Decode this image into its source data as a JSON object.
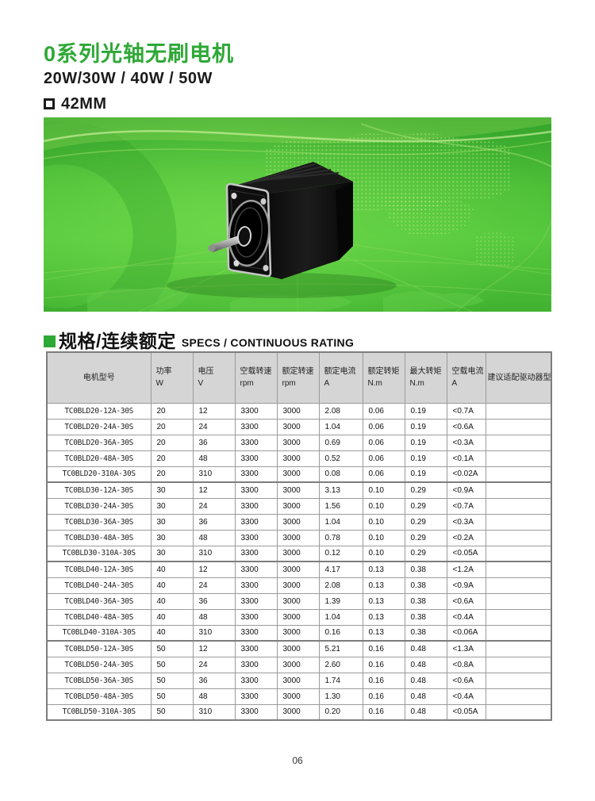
{
  "header": {
    "title": "0系列光轴无刷电机",
    "power_range": "20W/30W / 40W / 50W",
    "frame_size": "42MM"
  },
  "section": {
    "title_cn": "规格/连续额定",
    "title_en": "SPECS / CONTINUOUS RATING"
  },
  "banner": {
    "description": "green world-map banner with black brushless motor photo"
  },
  "table": {
    "columns": [
      {
        "label": "电机型号",
        "unit": ""
      },
      {
        "label": "功率",
        "unit": "W"
      },
      {
        "label": "电压",
        "unit": "V"
      },
      {
        "label": "空载转速",
        "unit": "rpm"
      },
      {
        "label": "额定转速",
        "unit": "rpm"
      },
      {
        "label": "额定电流",
        "unit": "A"
      },
      {
        "label": "额定转矩",
        "unit": "N.m"
      },
      {
        "label": "最大转矩",
        "unit": "N.m"
      },
      {
        "label": "空载电流",
        "unit": "A"
      },
      {
        "label": "建议适配驱动器型号",
        "unit": ""
      }
    ],
    "rows": [
      [
        "TC0BLD20-12A-30S",
        "20",
        "12",
        "3300",
        "3000",
        "2.08",
        "0.06",
        "0.19",
        "<0.7A",
        ""
      ],
      [
        "TC0BLD20-24A-30S",
        "20",
        "24",
        "3300",
        "3000",
        "1.04",
        "0.06",
        "0.19",
        "<0.6A",
        ""
      ],
      [
        "TC0BLD20-36A-30S",
        "20",
        "36",
        "3300",
        "3000",
        "0.69",
        "0.06",
        "0.19",
        "<0.3A",
        ""
      ],
      [
        "TC0BLD20-48A-30S",
        "20",
        "48",
        "3300",
        "3000",
        "0.52",
        "0.06",
        "0.19",
        "<0.1A",
        ""
      ],
      [
        "TC0BLD20-310A-30S",
        "20",
        "310",
        "3300",
        "3000",
        "0.08",
        "0.06",
        "0.19",
        "<0.02A",
        ""
      ],
      [
        "TC0BLD30-12A-30S",
        "30",
        "12",
        "3300",
        "3000",
        "3.13",
        "0.10",
        "0.29",
        "<0.9A",
        ""
      ],
      [
        "TC0BLD30-24A-30S",
        "30",
        "24",
        "3300",
        "3000",
        "1.56",
        "0.10",
        "0.29",
        "<0.7A",
        ""
      ],
      [
        "TC0BLD30-36A-30S",
        "30",
        "36",
        "3300",
        "3000",
        "1.04",
        "0.10",
        "0.29",
        "<0.3A",
        ""
      ],
      [
        "TC0BLD30-48A-30S",
        "30",
        "48",
        "3300",
        "3000",
        "0.78",
        "0.10",
        "0.29",
        "<0.2A",
        ""
      ],
      [
        "TC0BLD30-310A-30S",
        "30",
        "310",
        "3300",
        "3000",
        "0.12",
        "0.10",
        "0.29",
        "<0.05A",
        ""
      ],
      [
        "TC0BLD40-12A-30S",
        "40",
        "12",
        "3300",
        "3000",
        "4.17",
        "0.13",
        "0.38",
        "<1.2A",
        ""
      ],
      [
        "TC0BLD40-24A-30S",
        "40",
        "24",
        "3300",
        "3000",
        "2.08",
        "0.13",
        "0.38",
        "<0.9A",
        ""
      ],
      [
        "TC0BLD40-36A-30S",
        "40",
        "36",
        "3300",
        "3000",
        "1.39",
        "0.13",
        "0.38",
        "<0.6A",
        ""
      ],
      [
        "TC0BLD40-48A-30S",
        "40",
        "48",
        "3300",
        "3000",
        "1.04",
        "0.13",
        "0.38",
        "<0.4A",
        ""
      ],
      [
        "TC0BLD40-310A-30S",
        "40",
        "310",
        "3300",
        "3000",
        "0.16",
        "0.13",
        "0.38",
        "<0.06A",
        ""
      ],
      [
        "TC0BLD50-12A-30S",
        "50",
        "12",
        "3300",
        "3000",
        "5.21",
        "0.16",
        "0.48",
        "<1.3A",
        ""
      ],
      [
        "TC0BLD50-24A-30S",
        "50",
        "24",
        "3300",
        "3000",
        "2.60",
        "0.16",
        "0.48",
        "<0.8A",
        ""
      ],
      [
        "TC0BLD50-36A-30S",
        "50",
        "36",
        "3300",
        "3000",
        "1.74",
        "0.16",
        "0.48",
        "<0.6A",
        ""
      ],
      [
        "TC0BLD50-48A-30S",
        "50",
        "48",
        "3300",
        "3000",
        "1.30",
        "0.16",
        "0.48",
        "<0.4A",
        ""
      ],
      [
        "TC0BLD50-310A-30S",
        "50",
        "310",
        "3300",
        "3000",
        "0.20",
        "0.16",
        "0.48",
        "<0.05A",
        ""
      ]
    ]
  },
  "footer": {
    "page_number": "06"
  },
  "colors": {
    "accent_green": "#2EA836",
    "banner_green": "#4BBD3A",
    "table_header_bg": "#D5D5D5",
    "table_border": "#9B9B9B"
  }
}
